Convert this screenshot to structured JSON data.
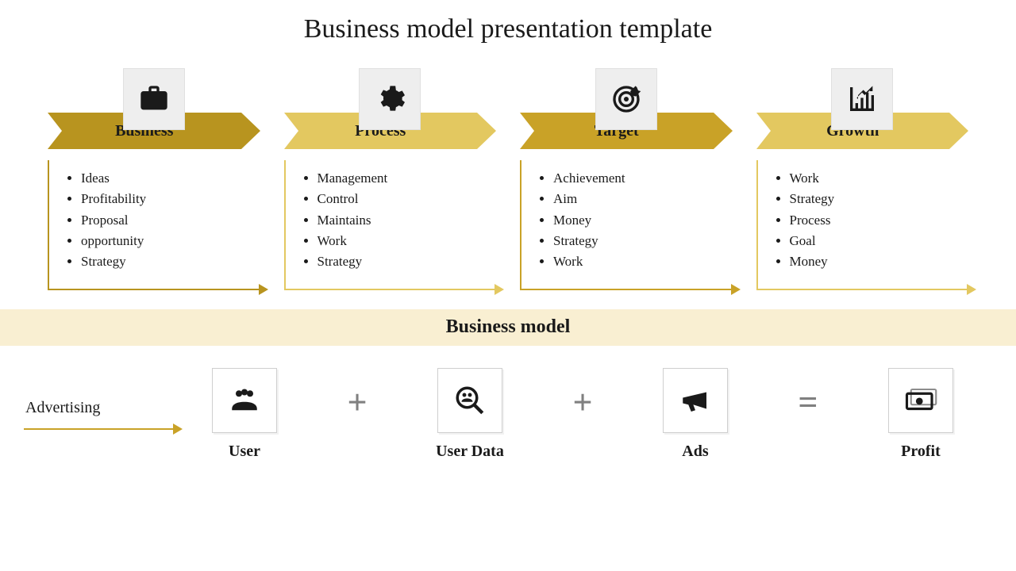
{
  "title": "Business model presentation template",
  "colors": {
    "dark_gold": "#b8941f",
    "gold": "#d9b53f",
    "light_gold": "#e3c860",
    "pale_gold": "#e8cf78",
    "cream_banner": "#f9efd2",
    "icon_fill": "#1a1a1a",
    "operator_gray": "#808080",
    "icon_box_bg": "#eeeeee"
  },
  "stages": [
    {
      "icon": "briefcase",
      "title": "Business",
      "arrow_color": "#b8941f",
      "bullets": [
        "Ideas",
        "Profitability",
        "Proposal",
        "opportunity",
        "Strategy"
      ]
    },
    {
      "icon": "gear",
      "title": "Process",
      "arrow_color": "#e3c860",
      "bullets": [
        "Management",
        "Control",
        "Maintains",
        "Work",
        "Strategy"
      ]
    },
    {
      "icon": "target",
      "title": "Target",
      "arrow_color": "#c9a227",
      "bullets": [
        "Achievement",
        "Aim",
        "Money",
        "Strategy",
        "Work"
      ]
    },
    {
      "icon": "chart",
      "title": "Growth",
      "arrow_color": "#e3c860",
      "bullets": [
        "Work",
        "Strategy",
        "Process",
        "Goal",
        "Money"
      ]
    }
  ],
  "banner_label": "Business model",
  "equation": {
    "side_label": "Advertising",
    "side_arrow_color": "#c9a227",
    "items": [
      {
        "icon": "users",
        "label": "User"
      },
      {
        "op": "+"
      },
      {
        "icon": "search-people",
        "label": "User Data"
      },
      {
        "op": "+"
      },
      {
        "icon": "megaphone",
        "label": "Ads"
      },
      {
        "op": "="
      },
      {
        "icon": "money",
        "label": "Profit"
      }
    ]
  }
}
